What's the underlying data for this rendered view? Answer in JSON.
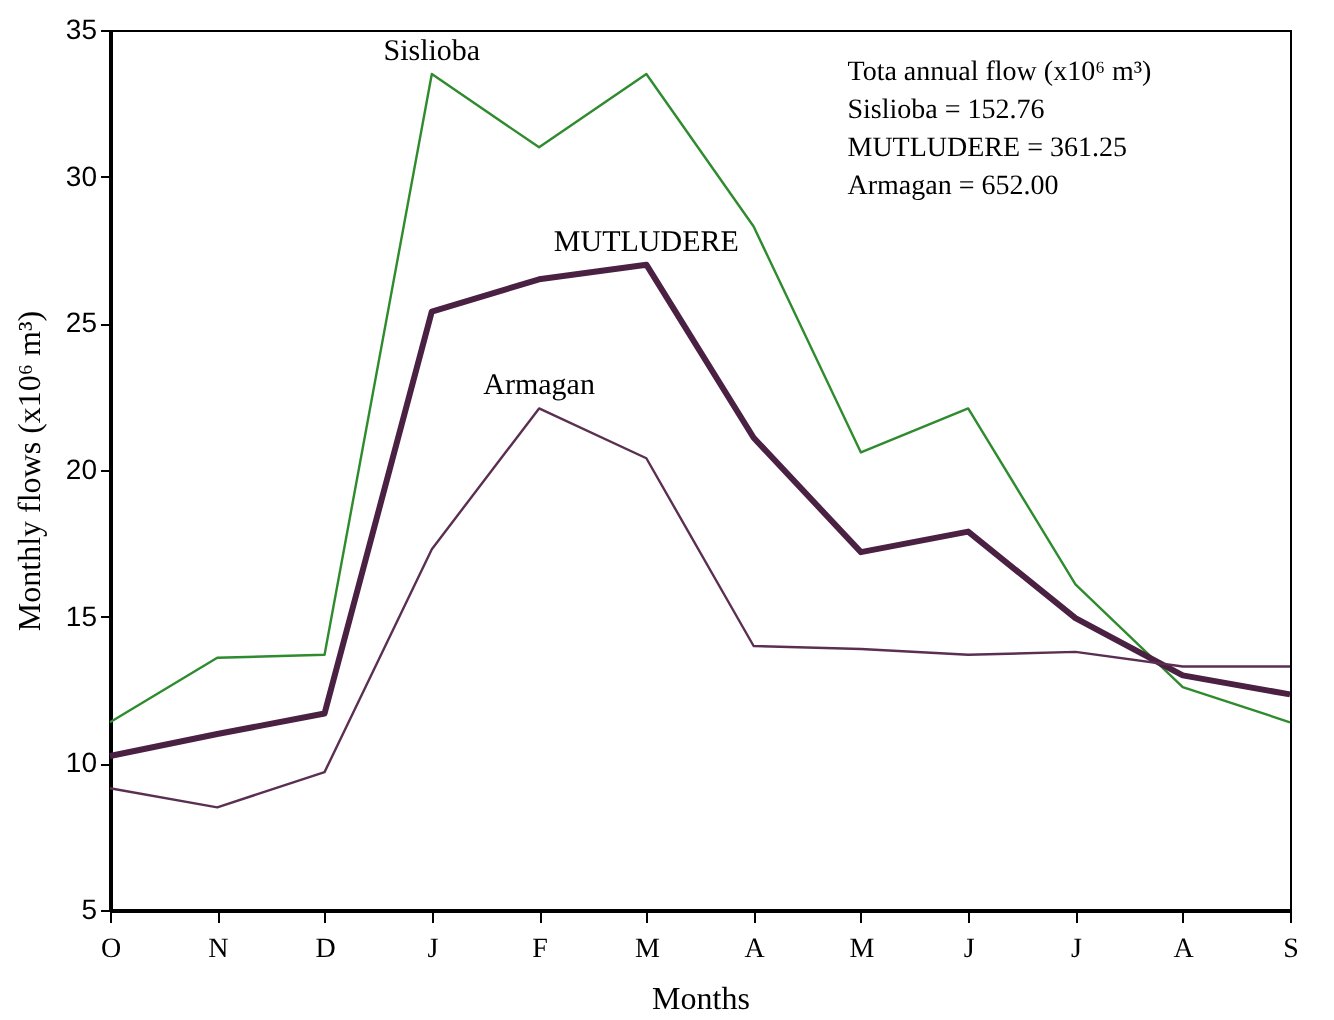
{
  "chart_data": {
    "type": "line",
    "xlabel": "Months",
    "ylabel": "Monthly flows (x10⁶ m³)",
    "categories": [
      "O",
      "N",
      "D",
      "J",
      "F",
      "M",
      "A",
      "M",
      "J",
      "J",
      "A",
      "S"
    ],
    "series": [
      {
        "name": "Sislioba",
        "color": "#2e8b2e",
        "values": [
          11.4,
          13.6,
          13.7,
          33.5,
          31.0,
          33.5,
          28.3,
          20.6,
          22.1,
          16.1,
          12.6,
          11.4
        ]
      },
      {
        "name": "MUTLUDERE",
        "color": "#4a2142",
        "values": [
          10.25,
          11.0,
          11.7,
          25.4,
          26.5,
          27.0,
          21.1,
          17.2,
          17.9,
          14.95,
          13.0,
          12.35
        ]
      },
      {
        "name": "Armagan",
        "color": "#5a2f52",
        "values": [
          9.15,
          8.5,
          9.7,
          17.3,
          22.1,
          20.4,
          14.0,
          13.9,
          13.7,
          13.8,
          13.3,
          13.3
        ]
      }
    ],
    "ylim": [
      5,
      35
    ],
    "yticks": [
      5,
      10,
      15,
      20,
      25,
      30,
      35
    ],
    "annotations": [
      "Tota annual flow (x10⁶ m³)",
      "Sislioba = 152.76",
      "MUTLUDERE = 361.25",
      "Armagan = 652.00"
    ]
  }
}
